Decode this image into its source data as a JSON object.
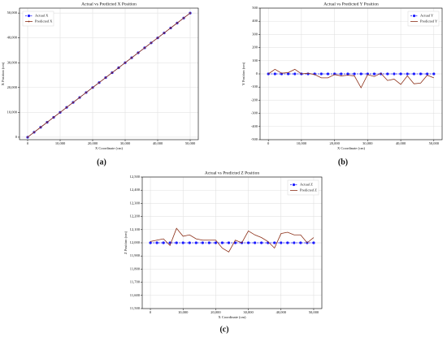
{
  "chart_data": [
    {
      "type": "line",
      "label": "(a)",
      "title": "Actual vs Predicted X Position",
      "xlabel": "X Coordinate (cm)",
      "ylabel": "X Position (cm)",
      "x": [
        0,
        2000,
        4000,
        6000,
        8000,
        10000,
        12000,
        14000,
        16000,
        18000,
        20000,
        22000,
        24000,
        26000,
        28000,
        30000,
        32000,
        34000,
        36000,
        38000,
        40000,
        42000,
        44000,
        46000,
        48000,
        50000
      ],
      "series": [
        {
          "name": "Actual X",
          "color": "#1a1aff",
          "linestyle": "dashed",
          "marker": "circle",
          "values": [
            0,
            2000,
            4000,
            6000,
            8000,
            10000,
            12000,
            14000,
            16000,
            18000,
            20000,
            22000,
            24000,
            26000,
            28000,
            30000,
            32000,
            34000,
            36000,
            38000,
            40000,
            42000,
            44000,
            46000,
            48000,
            50000
          ]
        },
        {
          "name": "Predicted X",
          "color": "#8b2e16",
          "linestyle": "solid",
          "marker": "dot",
          "values": [
            30,
            2020,
            3990,
            6010,
            8020,
            9990,
            12010,
            14020,
            15990,
            18010,
            20000,
            21990,
            24020,
            26010,
            27990,
            30020,
            31990,
            34010,
            36000,
            38020,
            39990,
            42010,
            44000,
            45990,
            48020,
            50010
          ]
        }
      ],
      "xlim": [
        -2500,
        52500
      ],
      "ylim": [
        -1000,
        52000
      ],
      "xticks": [
        0,
        {
          "value": 10000,
          "label": "10,000"
        },
        {
          "value": 20000,
          "label": "20,000"
        },
        {
          "value": 30000,
          "label": "30,000"
        },
        {
          "value": 40000,
          "label": "40,000"
        },
        {
          "value": 50000,
          "label": "50,000"
        }
      ],
      "yticks": [
        0,
        {
          "value": 10000,
          "label": "10,000"
        },
        {
          "value": 20000,
          "label": "20,000"
        },
        {
          "value": 30000,
          "label": "30,000"
        },
        {
          "value": 40000,
          "label": "40,000"
        },
        {
          "value": 50000,
          "label": "50,000"
        }
      ],
      "grid": true,
      "legend": "upper-left"
    },
    {
      "type": "line",
      "label": "(b)",
      "title": "Actual vs Predicted Y Position",
      "xlabel": "X Coordinate (cm)",
      "ylabel": "Y Position (cm)",
      "x": [
        0,
        2000,
        4000,
        6000,
        8000,
        10000,
        12000,
        14000,
        16000,
        18000,
        20000,
        22000,
        24000,
        26000,
        28000,
        30000,
        32000,
        34000,
        36000,
        38000,
        40000,
        42000,
        44000,
        46000,
        48000,
        50000
      ],
      "series": [
        {
          "name": "Actual Y",
          "color": "#1a1aff",
          "linestyle": "dashed",
          "marker": "circle",
          "values": [
            0,
            0,
            0,
            0,
            0,
            0,
            0,
            0,
            0,
            0,
            0,
            0,
            0,
            0,
            0,
            0,
            0,
            0,
            0,
            0,
            0,
            0,
            0,
            0,
            0,
            0
          ]
        },
        {
          "name": "Predicted Y",
          "color": "#8b2e16",
          "linestyle": "solid",
          "marker": "none",
          "values": [
            0,
            35,
            5,
            10,
            35,
            0,
            5,
            -5,
            -30,
            -30,
            -5,
            -15,
            -10,
            -15,
            -105,
            -5,
            -20,
            5,
            -50,
            -40,
            -80,
            -15,
            -75,
            -70,
            -10,
            -30
          ]
        }
      ],
      "xlim": [
        -2500,
        52500
      ],
      "ylim": [
        -500,
        500
      ],
      "xticks": [
        0,
        {
          "value": 10000,
          "label": "10,000"
        },
        {
          "value": 20000,
          "label": "20,000"
        },
        {
          "value": 30000,
          "label": "30,000"
        },
        {
          "value": 40000,
          "label": "40,000"
        },
        {
          "value": 50000,
          "label": "50,000"
        }
      ],
      "yticks": [
        -500,
        -400,
        -300,
        -200,
        -100,
        0,
        100,
        200,
        300,
        400,
        500
      ],
      "grid": true,
      "legend": "upper-right"
    },
    {
      "type": "line",
      "label": "(c)",
      "title": "Actual vs Predicted Z Position",
      "xlabel": "X Coordinate (cm)",
      "ylabel": "Z Position (cm)",
      "x": [
        0,
        2000,
        4000,
        6000,
        8000,
        10000,
        12000,
        14000,
        16000,
        18000,
        20000,
        22000,
        24000,
        26000,
        28000,
        30000,
        32000,
        34000,
        36000,
        38000,
        40000,
        42000,
        44000,
        46000,
        48000,
        50000
      ],
      "series": [
        {
          "name": "Actual Z",
          "color": "#1a1aff",
          "linestyle": "dashed",
          "marker": "circle",
          "values": [
            12000,
            12000,
            12000,
            12000,
            12000,
            12000,
            12000,
            12000,
            12000,
            12000,
            12000,
            12000,
            12000,
            12000,
            12000,
            12000,
            12000,
            12000,
            12000,
            12000,
            12000,
            12000,
            12000,
            12000,
            12000,
            12000
          ]
        },
        {
          "name": "Predicted Z",
          "color": "#8b2e16",
          "linestyle": "solid",
          "marker": "none",
          "values": [
            12010,
            12020,
            12030,
            11980,
            12110,
            12050,
            12060,
            12030,
            12020,
            12020,
            12020,
            11960,
            11930,
            12020,
            12000,
            12090,
            12060,
            12040,
            12010,
            11960,
            12070,
            12080,
            12060,
            12060,
            12000,
            12040
          ]
        }
      ],
      "xlim": [
        -2500,
        52500
      ],
      "ylim": [
        11500,
        12500
      ],
      "xticks": [
        0,
        {
          "value": 10000,
          "label": "10,000"
        },
        {
          "value": 20000,
          "label": "20,000"
        },
        {
          "value": 30000,
          "label": "30,000"
        },
        {
          "value": 40000,
          "label": "40,000"
        },
        {
          "value": 50000,
          "label": "50,000"
        }
      ],
      "yticks": [
        {
          "value": 11500,
          "label": "11,500"
        },
        {
          "value": 11600,
          "label": "11,600"
        },
        {
          "value": 11700,
          "label": "11,700"
        },
        {
          "value": 11800,
          "label": "11,800"
        },
        {
          "value": 11900,
          "label": "11,900"
        },
        {
          "value": 12000,
          "label": "12,000"
        },
        {
          "value": 12100,
          "label": "12,100"
        },
        {
          "value": 12200,
          "label": "12,200"
        },
        {
          "value": 12300,
          "label": "12,300"
        },
        {
          "value": 12400,
          "label": "12,400"
        },
        {
          "value": 12500,
          "label": "12,500"
        }
      ],
      "grid": true,
      "legend": "upper-right"
    }
  ]
}
